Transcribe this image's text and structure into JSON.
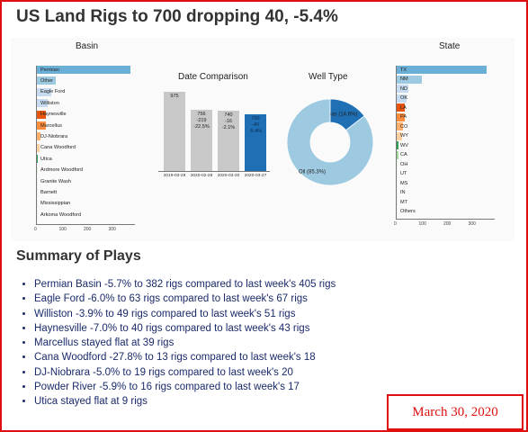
{
  "title": "US Land Rigs to 700 dropping 40, -5.4%",
  "colors": {
    "accent": "#e01010",
    "bar_blue": "#1f6fb4",
    "light_blue": "#9ecae1",
    "grey": "#c8c8c8",
    "orange": "#e6550d",
    "green": "#31a354"
  },
  "chart_data": [
    {
      "type": "bar",
      "orientation": "horizontal",
      "title": "Basin",
      "categories": [
        "Permian",
        "Other",
        "Eagle Ford",
        "Williston",
        "Haynesville",
        "Marcellus",
        "DJ-Niobrara",
        "Cana Woodford",
        "Utica",
        "Ardmore Woodford",
        "Granite Wash",
        "Barnett",
        "Mississippian",
        "Arkoma Woodford"
      ],
      "values": [
        382,
        80,
        63,
        49,
        40,
        39,
        19,
        13,
        9,
        5,
        4,
        3,
        3,
        2
      ],
      "colors": [
        "#6baed6",
        "#9ecae1",
        "#c6dbef",
        "#c6dbef",
        "#e6550d",
        "#fd8d3c",
        "#fdae6b",
        "#fdd0a2",
        "#31a354",
        "#e5f5e0",
        "#f0f0f0",
        "#f0f0f0",
        "#f0f0f0",
        "#f0f0f0"
      ],
      "xticks": [
        "0",
        "100",
        "200",
        "300"
      ],
      "xlim": [
        0,
        400
      ]
    },
    {
      "type": "bar",
      "title": "Date Comparison",
      "categories": [
        "2019-03-29",
        "2020-02-28",
        "2020-03-20",
        "2020-03-27"
      ],
      "values": [
        975,
        756,
        740,
        700
      ],
      "labels": [
        [
          "975"
        ],
        [
          "756",
          "-219",
          "-22.5%"
        ],
        [
          "740",
          "-16",
          "-2.1%"
        ],
        [
          "700",
          "-40",
          "-5.4%"
        ]
      ],
      "colors": [
        "#c8c8c8",
        "#c8c8c8",
        "#c8c8c8",
        "#1f6fb4"
      ],
      "ylim": [
        0,
        1000
      ]
    },
    {
      "type": "pie",
      "title": "Well Type",
      "labels": [
        "Gas (14.6%)",
        "Oil (85.3%)"
      ],
      "values": [
        14.6,
        85.3
      ],
      "colors": [
        "#1f6fb4",
        "#9ecae1"
      ]
    },
    {
      "type": "bar",
      "orientation": "horizontal",
      "title": "State",
      "categories": [
        "TX",
        "NM",
        "ND",
        "OK",
        "LA",
        "PA",
        "CO",
        "WY",
        "WV",
        "CA",
        "OH",
        "UT",
        "MS",
        "IN",
        "MT",
        "Others"
      ],
      "values": [
        368,
        105,
        51,
        45,
        38,
        37,
        30,
        25,
        12,
        10,
        9,
        8,
        3,
        2,
        2,
        3
      ],
      "colors": [
        "#6baed6",
        "#9ecae1",
        "#c6dbef",
        "#c6dbef",
        "#e6550d",
        "#fd8d3c",
        "#fdae6b",
        "#fdd0a2",
        "#31a354",
        "#a1d99b",
        "#e5f5e0",
        "#f0f0f0",
        "#f0f0f0",
        "#f0f0f0",
        "#f0f0f0",
        "#f0f0f0"
      ],
      "xticks": [
        "0",
        "100",
        "200",
        "300"
      ],
      "xlim": [
        0,
        400
      ]
    }
  ],
  "summary": {
    "heading": "Summary of Plays",
    "items": [
      "Permian Basin -5.7% to 382 rigs compared to last week's 405 rigs",
      "Eagle Ford -6.0% to 63 rigs compared to last week's 67 rigs",
      "Williston -3.9% to 49 rigs compared to last week's 51 rigs",
      "Haynesville -7.0% to 40 rigs compared to last week's 43 rigs",
      "Marcellus stayed flat at 39 rigs",
      "Cana Woodford -27.8% to 13 rigs compared to last week's 18",
      "DJ-Niobrara -5.0% to 19 rigs compared to last week's 20",
      "Powder River -5.9% to 16 rigs compared to last week's 17",
      "Utica stayed flat at 9 rigs"
    ]
  },
  "date": "March 30, 2020"
}
